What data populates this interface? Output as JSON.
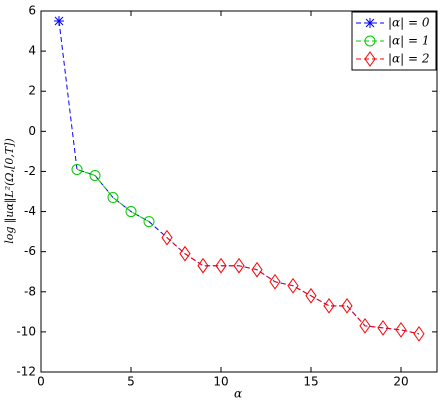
{
  "chart_data": {
    "type": "line",
    "xlabel": "α",
    "ylabel": "log ‖uα‖L²(Ω,[0,T])",
    "xlim": [
      0,
      22
    ],
    "xticks": [
      0,
      5,
      10,
      15,
      20
    ],
    "ylim": [
      -12,
      6
    ],
    "yticks": [
      -12,
      -10,
      -8,
      -6,
      -4,
      -2,
      0,
      2,
      4,
      6
    ],
    "connect_color": "#0000ff",
    "legend": "upper right",
    "series": [
      {
        "name": "|α| = 0",
        "color": "#0000ff",
        "marker": "asterisk",
        "x": [
          1
        ],
        "values": [
          5.5
        ]
      },
      {
        "name": "|α| = 1",
        "color": "#00cc00",
        "marker": "circle",
        "x": [
          2,
          3,
          4,
          5,
          6
        ],
        "values": [
          -1.9,
          -2.2,
          -3.3,
          -4.0,
          -4.5
        ]
      },
      {
        "name": "|α| = 2",
        "color": "#ff0000",
        "marker": "diamond",
        "x": [
          7,
          8,
          9,
          10,
          11,
          12,
          13,
          14,
          15,
          16,
          17,
          18,
          19,
          20,
          21
        ],
        "values": [
          -5.3,
          -6.1,
          -6.7,
          -6.7,
          -6.7,
          -6.9,
          -7.5,
          -7.7,
          -8.2,
          -8.7,
          -8.7,
          -9.7,
          -9.8,
          -9.9,
          -10.1
        ]
      }
    ]
  }
}
